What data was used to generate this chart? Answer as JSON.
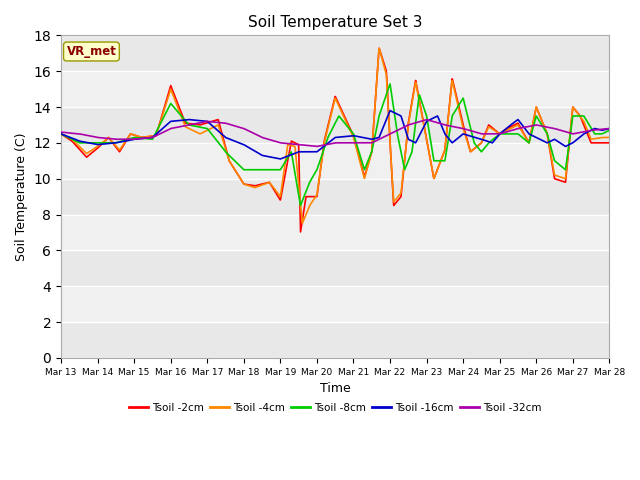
{
  "title": "Soil Temperature Set 3",
  "xlabel": "Time",
  "ylabel": "Soil Temperature (C)",
  "ylim": [
    0,
    18
  ],
  "yticks": [
    0,
    2,
    4,
    6,
    8,
    10,
    12,
    14,
    16,
    18
  ],
  "xtick_labels": [
    "Mar 13",
    "Mar 14",
    "Mar 15",
    "Mar 16",
    "Mar 17",
    "Mar 18",
    "Mar 19",
    "Mar 20",
    "Mar 21",
    "Mar 22",
    "Mar 23",
    "Mar 24",
    "Mar 25",
    "Mar 26",
    "Mar 27",
    "Mar 28"
  ],
  "colors": {
    "Tsoil -2cm": "#ff0000",
    "Tsoil -4cm": "#ff8800",
    "Tsoil -8cm": "#00cc00",
    "Tsoil -16cm": "#0000cc",
    "Tsoil -32cm": "#aa00aa"
  },
  "bg_light": "#e8e8e8",
  "bg_dark": "#d0d0d0",
  "annotation_text": "VR_met",
  "annotation_color": "#8b0000",
  "annotation_bg": "#ffffcc",
  "annotation_edge": "#999900"
}
